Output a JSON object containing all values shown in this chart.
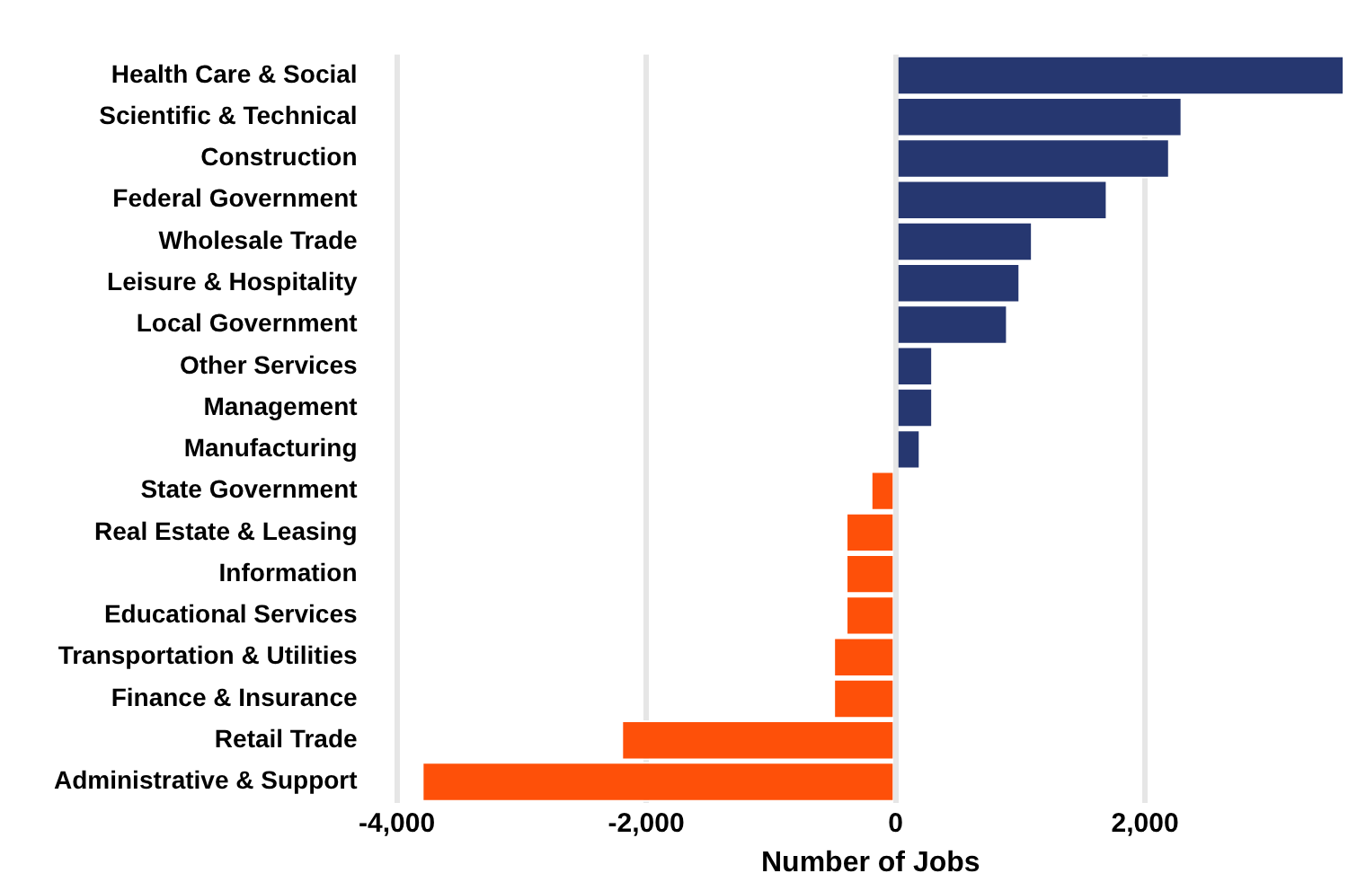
{
  "chart_data": {
    "type": "bar",
    "orientation": "horizontal",
    "xlabel": "Number of Jobs",
    "categories": [
      "Health Care & Social",
      "Scientific & Technical",
      "Construction",
      "Federal Government",
      "Wholesale Trade",
      "Leisure & Hospitality",
      "Local Government",
      "Other Services",
      "Management",
      "Manufacturing",
      "State Government",
      "Real Estate & Leasing",
      "Information",
      "Educational Services",
      "Transportation & Utilities",
      "Finance & Insurance",
      "Retail Trade",
      "Administrative & Support"
    ],
    "values": [
      3600,
      2300,
      2200,
      1700,
      1100,
      1000,
      900,
      300,
      300,
      200,
      -200,
      -400,
      -400,
      -400,
      -500,
      -500,
      -2200,
      -3800
    ],
    "colors": [
      "#263770",
      "#263770",
      "#263770",
      "#263770",
      "#263770",
      "#263770",
      "#263770",
      "#263770",
      "#263770",
      "#263770",
      "#fe5009",
      "#fe5009",
      "#fe5009",
      "#fe5009",
      "#fe5009",
      "#fe5009",
      "#fe5009",
      "#fe5009"
    ],
    "xlim": [
      -4000,
      3600
    ],
    "xticks": [
      {
        "value": -4000,
        "label": "-4,000"
      },
      {
        "value": -2000,
        "label": "-2,000"
      },
      0,
      {
        "value": 2000,
        "label": "2,000"
      }
    ],
    "grid": "x",
    "legend": false
  }
}
